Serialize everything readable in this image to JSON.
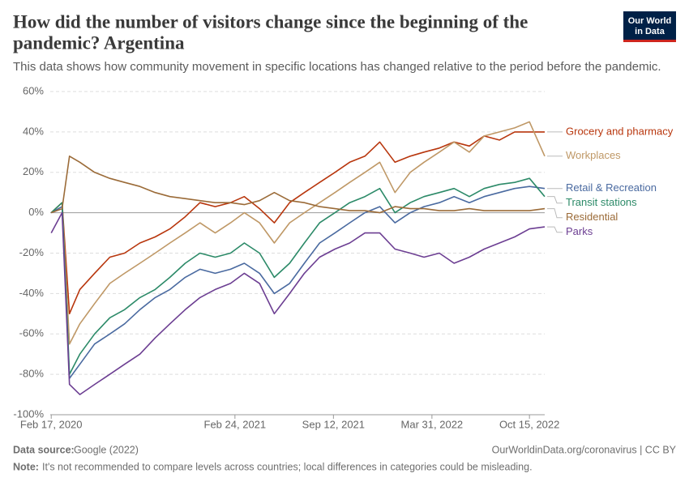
{
  "chart_data": {
    "type": "line",
    "title": "How did the number of visitors change since the beginning of the pandemic? Argentina",
    "title_lines": [
      "How did the number of visitors change since the beginning of the",
      "pandemic? Argentina"
    ],
    "subtitle": "This data shows how community movement in specific locations has changed relative to the period before the pandemic.",
    "logo_lines": [
      "Our World",
      "in Data"
    ],
    "source_label": "Data source:",
    "source": "Google (2022)",
    "url": "OurWorldinData.org/coronavirus | CC BY",
    "note_label": "Note:",
    "note": "It's not recommended to compare levels across countries; local differences in categories could be misleading.",
    "x": [
      "2020-02-17",
      "2020-03-10",
      "2020-03-25",
      "2020-04-15",
      "2020-05-15",
      "2020-06-15",
      "2020-07-15",
      "2020-08-15",
      "2020-09-15",
      "2020-10-15",
      "2020-11-15",
      "2020-12-15",
      "2021-01-15",
      "2021-02-15",
      "2021-03-15",
      "2021-04-15",
      "2021-05-15",
      "2021-06-15",
      "2021-07-15",
      "2021-08-15",
      "2021-09-15",
      "2021-10-15",
      "2021-11-15",
      "2021-12-15",
      "2022-01-15",
      "2022-02-15",
      "2022-03-15",
      "2022-04-15",
      "2022-05-15",
      "2022-06-15",
      "2022-07-15",
      "2022-08-15",
      "2022-09-15",
      "2022-10-15",
      "2022-11-15"
    ],
    "xlim": [
      "2020-02-15",
      "2022-11-15"
    ],
    "xticks": [
      {
        "value": "2020-02-17",
        "label": "Feb 17, 2020"
      },
      {
        "value": "2021-02-24",
        "label": "Feb 24, 2021"
      },
      {
        "value": "2021-09-12",
        "label": "Sep 12, 2021"
      },
      {
        "value": "2022-03-31",
        "label": "Mar 31, 2022"
      },
      {
        "value": "2022-10-15",
        "label": "Oct 15, 2022"
      }
    ],
    "ylim": [
      -100,
      60
    ],
    "yticks": [
      {
        "value": -100,
        "label": "-100%"
      },
      {
        "value": -80,
        "label": "-80%"
      },
      {
        "value": -60,
        "label": "-60%"
      },
      {
        "value": -40,
        "label": "-40%"
      },
      {
        "value": -20,
        "label": "-20%"
      },
      {
        "value": 0,
        "label": "0%"
      },
      {
        "value": 20,
        "label": "20%"
      },
      {
        "value": 40,
        "label": "40%"
      },
      {
        "value": 60,
        "label": "60%"
      }
    ],
    "grid": true,
    "legend": "right",
    "series": [
      {
        "name": "Grocery and pharmacy",
        "color": "#b8360d",
        "values": [
          0,
          5,
          -50,
          -38,
          -30,
          -22,
          -20,
          -15,
          -12,
          -8,
          -2,
          5,
          3,
          5,
          8,
          2,
          -5,
          5,
          10,
          15,
          20,
          25,
          28,
          35,
          25,
          28,
          30,
          32,
          35,
          33,
          38,
          36,
          40,
          40,
          40
        ]
      },
      {
        "name": "Workplaces",
        "color": "#bf9866",
        "values": [
          0,
          5,
          -65,
          -55,
          -45,
          -35,
          -30,
          -25,
          -20,
          -15,
          -10,
          -5,
          -10,
          -5,
          0,
          -5,
          -15,
          -5,
          0,
          5,
          10,
          15,
          20,
          25,
          10,
          20,
          25,
          30,
          35,
          30,
          38,
          40,
          42,
          45,
          28
        ]
      },
      {
        "name": "Retail & Recreation",
        "color": "#4a6aa0",
        "values": [
          0,
          3,
          -82,
          -75,
          -65,
          -60,
          -55,
          -48,
          -42,
          -38,
          -32,
          -28,
          -30,
          -28,
          -25,
          -30,
          -40,
          -35,
          -25,
          -15,
          -10,
          -5,
          0,
          3,
          -5,
          0,
          3,
          5,
          8,
          5,
          8,
          10,
          12,
          13,
          12
        ]
      },
      {
        "name": "Transit stations",
        "color": "#2c8a68",
        "values": [
          0,
          5,
          -80,
          -70,
          -60,
          -52,
          -48,
          -42,
          -38,
          -32,
          -25,
          -20,
          -22,
          -20,
          -15,
          -20,
          -32,
          -25,
          -15,
          -5,
          0,
          5,
          8,
          12,
          0,
          5,
          8,
          10,
          12,
          8,
          12,
          14,
          15,
          17,
          8
        ]
      },
      {
        "name": "Residential",
        "color": "#9b6b38",
        "values": [
          0,
          2,
          28,
          25,
          20,
          17,
          15,
          13,
          10,
          8,
          7,
          6,
          5,
          5,
          4,
          6,
          10,
          6,
          5,
          3,
          2,
          1,
          1,
          0,
          3,
          2,
          2,
          1,
          1,
          2,
          1,
          1,
          1,
          1,
          2
        ]
      },
      {
        "name": "Parks",
        "color": "#6c3e92",
        "values": [
          -10,
          0,
          -85,
          -90,
          -85,
          -80,
          -75,
          -70,
          -62,
          -55,
          -48,
          -42,
          -38,
          -35,
          -30,
          -35,
          -50,
          -40,
          -30,
          -22,
          -18,
          -15,
          -10,
          -10,
          -18,
          -20,
          -22,
          -20,
          -25,
          -22,
          -18,
          -15,
          -12,
          -8,
          -7
        ]
      }
    ]
  }
}
